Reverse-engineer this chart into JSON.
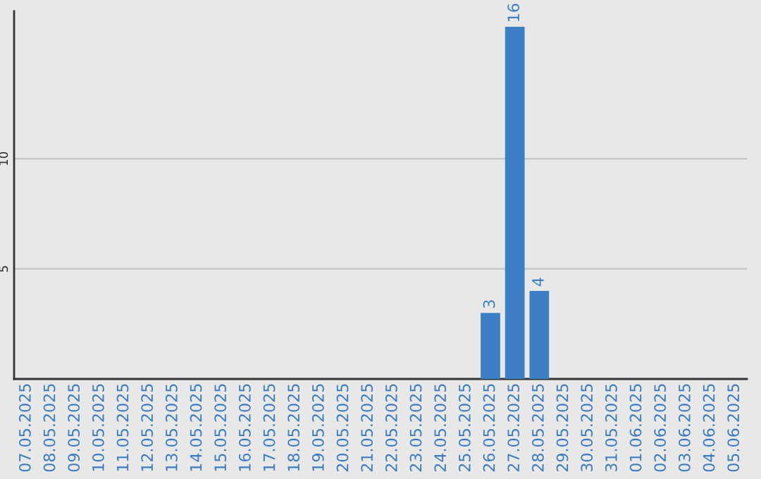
{
  "chart_data": {
    "type": "bar",
    "categories": [
      "07.05.2025",
      "08.05.2025",
      "09.05.2025",
      "10.05.2025",
      "11.05.2025",
      "12.05.2025",
      "13.05.2025",
      "14.05.2025",
      "15.05.2025",
      "16.05.2025",
      "17.05.2025",
      "18.05.2025",
      "19.05.2025",
      "20.05.2025",
      "21.05.2025",
      "22.05.2025",
      "23.05.2025",
      "24.05.2025",
      "25.05.2025",
      "26.05.2025",
      "27.05.2025",
      "28.05.2025",
      "29.05.2025",
      "30.05.2025",
      "31.05.2025",
      "01.06.2025",
      "02.06.2025",
      "03.06.2025",
      "04.06.2025",
      "05.06.2025"
    ],
    "values": [
      0,
      0,
      0,
      0,
      0,
      0,
      0,
      0,
      0,
      0,
      0,
      0,
      0,
      0,
      0,
      0,
      0,
      0,
      0,
      3,
      16,
      4,
      0,
      0,
      0,
      0,
      0,
      0,
      0,
      0
    ],
    "value_labels": [
      null,
      null,
      null,
      null,
      null,
      null,
      null,
      null,
      null,
      null,
      null,
      null,
      null,
      null,
      null,
      null,
      null,
      null,
      null,
      "3",
      "16",
      "4",
      null,
      null,
      null,
      null,
      null,
      null,
      null,
      null
    ],
    "color": "#3d7fc4",
    "ylim": [
      0,
      16.7
    ],
    "yticks": [
      5,
      10
    ],
    "grid": "y",
    "legend": false
  }
}
